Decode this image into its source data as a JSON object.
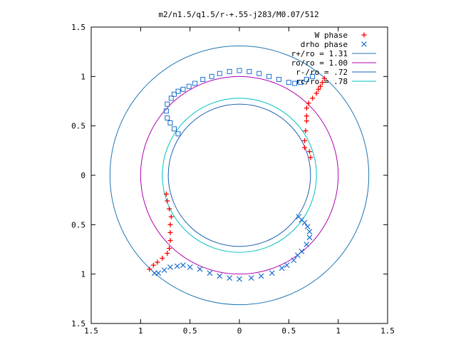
{
  "chart_data": {
    "type": "scatter",
    "title": "m2/n1.5/q1.5/r-+.55-j283/M0.07/512",
    "xlim": [
      -1.5,
      1.5
    ],
    "ylim": [
      -1.5,
      1.5
    ],
    "x_tick_values": [
      -1.5,
      -1,
      -0.5,
      0,
      0.5,
      1,
      1.5
    ],
    "x_tick_labels": [
      "1.5",
      "1",
      "0.5",
      "0",
      "0.5",
      "1",
      "1.5"
    ],
    "y_tick_values": [
      1.5,
      1,
      0.5,
      0,
      -0.5,
      -1,
      -1.5
    ],
    "y_tick_labels": [
      "1.5",
      "1",
      "0.5",
      "0",
      "0.5",
      "1",
      "1.5"
    ],
    "legend_position": "top-right",
    "circles": [
      {
        "name": "r+/ro = 1.31",
        "radius": 1.31,
        "color": "#1f77b4"
      },
      {
        "name": "ro/ro = 1.00",
        "radius": 1.0,
        "color": "#b000b0"
      },
      {
        "name": "r-/ro = .72",
        "radius": 0.72,
        "color": "#1a5fb4"
      },
      {
        "name": "rc/ro = .78",
        "radius": 0.78,
        "color": "#00c0c0"
      }
    ],
    "series": [
      {
        "name": "W phase",
        "marker": "plus",
        "color": "#ff0000",
        "points": [
          [
            0.72,
            0.18
          ],
          [
            0.71,
            0.24
          ],
          [
            0.66,
            0.28
          ],
          [
            0.66,
            0.35
          ],
          [
            0.67,
            0.45
          ],
          [
            0.68,
            0.55
          ],
          [
            0.68,
            0.6
          ],
          [
            0.68,
            0.68
          ],
          [
            0.7,
            0.73
          ],
          [
            0.74,
            0.78
          ],
          [
            0.78,
            0.83
          ],
          [
            0.8,
            0.87
          ],
          [
            0.82,
            0.9
          ],
          [
            0.84,
            0.94
          ],
          [
            0.86,
            0.98
          ],
          [
            -0.74,
            -0.19
          ],
          [
            -0.73,
            -0.26
          ],
          [
            -0.71,
            -0.34
          ],
          [
            -0.69,
            -0.42
          ],
          [
            -0.7,
            -0.5
          ],
          [
            -0.7,
            -0.58
          ],
          [
            -0.7,
            -0.66
          ],
          [
            -0.71,
            -0.74
          ],
          [
            -0.73,
            -0.79
          ],
          [
            -0.78,
            -0.84
          ],
          [
            -0.83,
            -0.88
          ],
          [
            -0.87,
            -0.91
          ],
          [
            -0.91,
            -0.95
          ]
        ]
      },
      {
        "name": "drho phase",
        "marker": "cross",
        "color": "#1a6fd0",
        "points": [
          [
            0.6,
            -0.42
          ],
          [
            0.63,
            -0.45
          ],
          [
            0.66,
            -0.48
          ],
          [
            0.69,
            -0.52
          ],
          [
            0.71,
            -0.57
          ],
          [
            0.71,
            -0.63
          ],
          [
            0.68,
            -0.7
          ],
          [
            0.63,
            -0.77
          ],
          [
            0.59,
            -0.81
          ],
          [
            0.55,
            -0.86
          ],
          [
            0.48,
            -0.91
          ],
          [
            0.43,
            -0.94
          ],
          [
            0.33,
            -0.99
          ],
          [
            0.22,
            -1.02
          ],
          [
            0.12,
            -1.04
          ],
          [
            0.0,
            -1.05
          ],
          [
            -0.1,
            -1.04
          ],
          [
            -0.2,
            -1.02
          ],
          [
            -0.3,
            -0.99
          ],
          [
            -0.4,
            -0.95
          ],
          [
            -0.5,
            -0.93
          ],
          [
            -0.57,
            -0.91
          ],
          [
            -0.63,
            -0.92
          ],
          [
            -0.7,
            -0.93
          ],
          [
            -0.76,
            -0.96
          ],
          [
            -0.82,
            -0.99
          ],
          [
            -0.86,
            -0.99
          ]
        ]
      },
      {
        "name": "",
        "marker": "square",
        "color": "#1a6fd0",
        "points": [
          [
            -0.62,
            0.42
          ],
          [
            -0.66,
            0.47
          ],
          [
            -0.7,
            0.53
          ],
          [
            -0.73,
            0.58
          ],
          [
            -0.74,
            0.65
          ],
          [
            -0.73,
            0.72
          ],
          [
            -0.69,
            0.78
          ],
          [
            -0.66,
            0.82
          ],
          [
            -0.62,
            0.85
          ],
          [
            -0.57,
            0.87
          ],
          [
            -0.51,
            0.9
          ],
          [
            -0.45,
            0.93
          ],
          [
            -0.37,
            0.97
          ],
          [
            -0.28,
            1.0
          ],
          [
            -0.2,
            1.03
          ],
          [
            -0.1,
            1.05
          ],
          [
            0.0,
            1.06
          ],
          [
            0.1,
            1.05
          ],
          [
            0.2,
            1.03
          ],
          [
            0.3,
            1.0
          ],
          [
            0.4,
            0.97
          ],
          [
            0.5,
            0.94
          ],
          [
            0.56,
            0.93
          ],
          [
            0.62,
            0.94
          ],
          [
            0.68,
            0.97
          ],
          [
            0.74,
            1.0
          ]
        ]
      }
    ]
  }
}
